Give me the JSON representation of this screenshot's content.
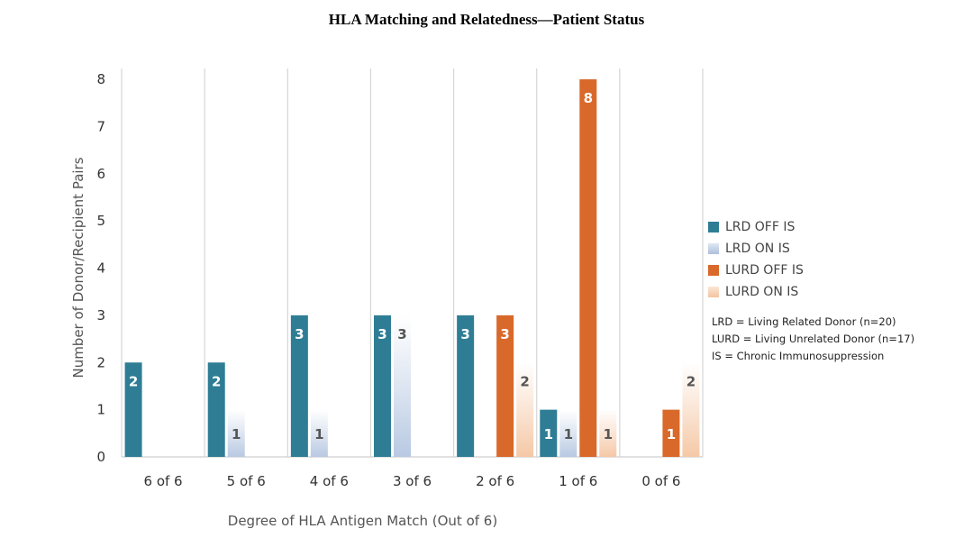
{
  "chart_data": {
    "type": "bar",
    "title": "HLA Matching and Relatedness—Patient Status",
    "xlabel": "Degree of HLA Antigen Match (Out of 6)",
    "ylabel": "Number of Donor/Recipient Pairs",
    "categories": [
      "6 of 6",
      "5 of 6",
      "4 of 6",
      "3 of 6",
      "2 of 6",
      "1 of 6",
      "0 of 6"
    ],
    "ylim": [
      0,
      8
    ],
    "yticks": [
      0,
      1,
      2,
      3,
      4,
      5,
      6,
      7,
      8
    ],
    "grid": "vertical",
    "legend_position": "right",
    "series": [
      {
        "name": "LRD OFF IS",
        "color": "#2e7d95",
        "style": "solid",
        "values": [
          2,
          2,
          3,
          3,
          3,
          1,
          0
        ]
      },
      {
        "name": "LRD ON IS",
        "color": "#b8c9e2",
        "style": "gradient",
        "values": [
          0,
          1,
          1,
          3,
          0,
          1,
          0
        ]
      },
      {
        "name": "LURD OFF IS",
        "color": "#d9692a",
        "style": "solid",
        "values": [
          0,
          0,
          0,
          0,
          3,
          8,
          1
        ]
      },
      {
        "name": "LURD ON IS",
        "color": "#f5c8a6",
        "style": "gradient",
        "values": [
          0,
          0,
          0,
          0,
          2,
          1,
          2
        ]
      }
    ],
    "notes": [
      "LRD = Living Related Donor (n=20)",
      "LURD = Living Unrelated Donor (n=17)",
      "IS = Chronic Immunosuppression"
    ]
  }
}
